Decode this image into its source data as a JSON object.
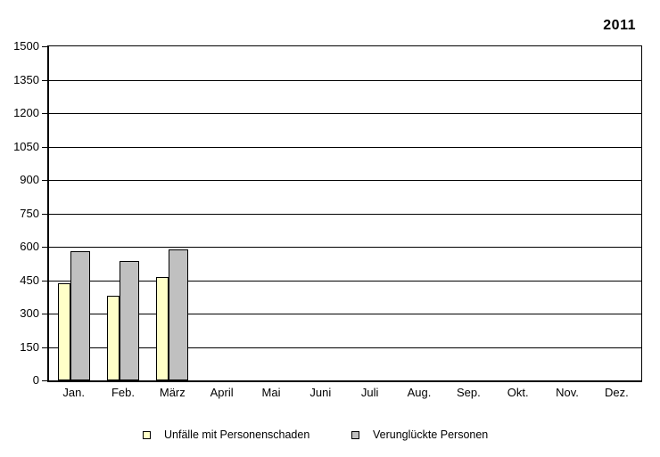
{
  "chart_data": {
    "type": "bar",
    "title": "2011",
    "categories": [
      "Jan.",
      "Feb.",
      "März",
      "April",
      "Mai",
      "Juni",
      "Juli",
      "Aug.",
      "Sep.",
      "Okt.",
      "Nov.",
      "Dez."
    ],
    "series": [
      {
        "name": "Unfälle mit Personenschaden",
        "color": "#FFFFC8",
        "border_color": "#000000",
        "values": [
          435,
          380,
          465,
          null,
          null,
          null,
          null,
          null,
          null,
          null,
          null,
          null
        ]
      },
      {
        "name": "Verunglückte Personen",
        "color": "#C0C0C0",
        "border_color": "#000000",
        "values": [
          580,
          535,
          590,
          null,
          null,
          null,
          null,
          null,
          null,
          null,
          null,
          null
        ]
      }
    ],
    "ylim": [
      0,
      1500
    ],
    "yticks": [
      0,
      150,
      300,
      450,
      600,
      750,
      900,
      1050,
      1200,
      1350,
      1500
    ],
    "xlabel": "",
    "ylabel": "",
    "grid": "horizontal",
    "legend_position": "bottom",
    "axis_color": "#000000",
    "plot_background": "#FFFFFF"
  }
}
